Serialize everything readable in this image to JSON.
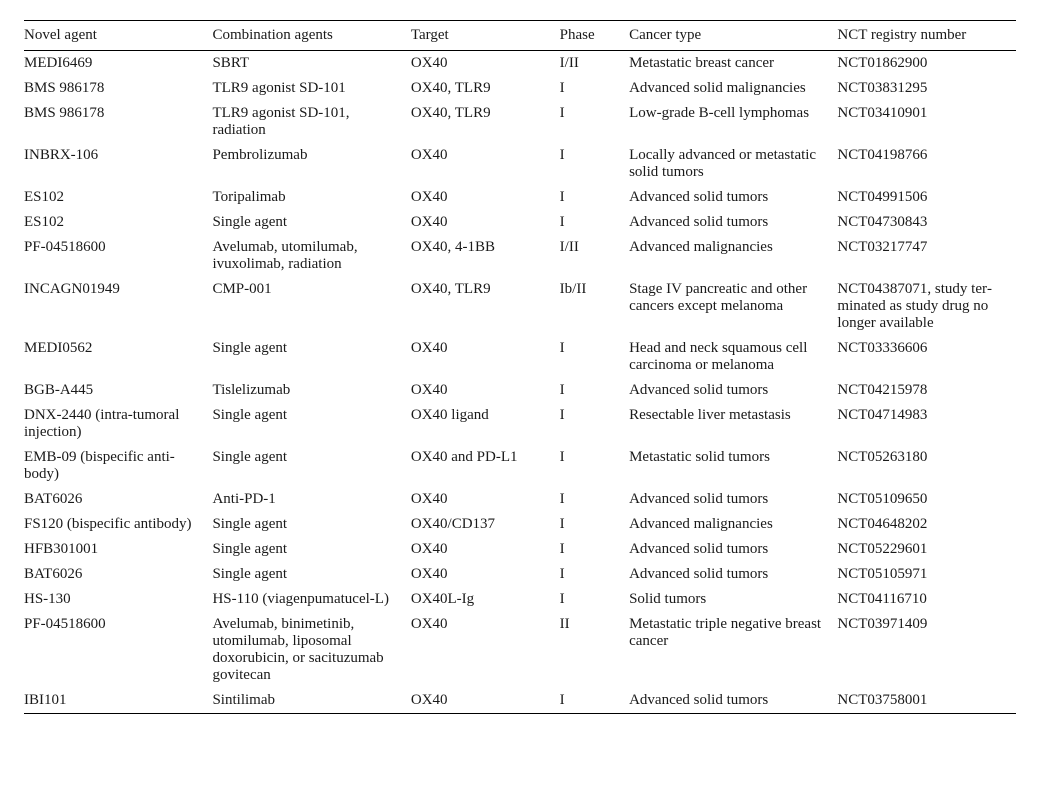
{
  "columns": [
    "Novel agent",
    "Combination agents",
    "Target",
    "Phase",
    "Cancer type",
    "NCT registry number"
  ],
  "rows": [
    {
      "agent": "MEDI6469",
      "combo": "SBRT",
      "target": "OX40",
      "phase": "I/II",
      "cancer": "Metastatic breast cancer",
      "nct": "NCT01862900"
    },
    {
      "agent": "BMS 986178",
      "combo": "TLR9 agonist SD-101",
      "target": "OX40, TLR9",
      "phase": "I",
      "cancer": "Advanced solid malignan­cies",
      "nct": "NCT03831295"
    },
    {
      "agent": "BMS 986178",
      "combo": "TLR9 agonist SD-101, radiation",
      "target": "OX40, TLR9",
      "phase": "I",
      "cancer": "Low-grade B-cell lympho­mas",
      "nct": "NCT03410901"
    },
    {
      "agent": "INBRX-106",
      "combo": "Pembrolizumab",
      "target": "OX40",
      "phase": "I",
      "cancer": "Locally advanced or meta­static solid tumors",
      "nct": "NCT04198766"
    },
    {
      "agent": "ES102",
      "combo": "Toripalimab",
      "target": "OX40",
      "phase": "I",
      "cancer": "Advanced solid tumors",
      "nct": "NCT04991506"
    },
    {
      "agent": "ES102",
      "combo": "Single agent",
      "target": "OX40",
      "phase": "I",
      "cancer": "Advanced solid tumors",
      "nct": "NCT04730843"
    },
    {
      "agent": "PF-04518600",
      "combo": "Avelumab, utomilumab, ivuxolimab, radiation",
      "target": "OX40, 4-1BB",
      "phase": "I/II",
      "cancer": "Advanced malignancies",
      "nct": "NCT03217747"
    },
    {
      "agent": "INCAGN01949",
      "combo": "CMP-001",
      "target": "OX40, TLR9",
      "phase": "Ib/II",
      "cancer": "Stage IV pancreatic and other cancers except melanoma",
      "nct": "NCT04387071, study ter­minated as study drug no longer available"
    },
    {
      "agent": "MEDI0562",
      "combo": "Single agent",
      "target": "OX40",
      "phase": "I",
      "cancer": "Head and neck squamous cell carcinoma or mela­noma",
      "nct": "NCT03336606"
    },
    {
      "agent": "BGB-A445",
      "combo": "Tislelizumab",
      "target": "OX40",
      "phase": "I",
      "cancer": "Advanced solid tumors",
      "nct": "NCT04215978"
    },
    {
      "agent": "DNX-2440 (intra-tumoral injection)",
      "combo": "Single agent",
      "target": "OX40 ligand",
      "phase": "I",
      "cancer": "Resectable liver metastasis",
      "nct": "NCT04714983"
    },
    {
      "agent": "EMB-09 (bispecific anti­body)",
      "combo": "Single agent",
      "target": "OX40 and PD-L1",
      "phase": "I",
      "cancer": "Metastatic solid tumors",
      "nct": "NCT05263180"
    },
    {
      "agent": "BAT6026",
      "combo": "Anti-PD-1",
      "target": "OX40",
      "phase": "I",
      "cancer": "Advanced solid tumors",
      "nct": "NCT05109650"
    },
    {
      "agent": "FS120 (bispecific antibody)",
      "combo": "Single agent",
      "target": "OX40/CD137",
      "phase": "I",
      "cancer": "Advanced malignancies",
      "nct": "NCT04648202"
    },
    {
      "agent": "HFB301001",
      "combo": "Single agent",
      "target": "OX40",
      "phase": "I",
      "cancer": "Advanced solid tumors",
      "nct": "NCT05229601"
    },
    {
      "agent": "BAT6026",
      "combo": "Single agent",
      "target": "OX40",
      "phase": "I",
      "cancer": "Advanced solid tumors",
      "nct": "NCT05105971"
    },
    {
      "agent": "HS-130",
      "combo": "HS-110 (viagenpumatucel-L)",
      "target": "OX40L-Ig",
      "phase": "I",
      "cancer": "Solid tumors",
      "nct": "NCT04116710"
    },
    {
      "agent": "PF-04518600",
      "combo": "Avelumab, binimetinib, utomilumab, liposomal doxorubicin, or sacitu­zumab govitecan",
      "target": "OX40",
      "phase": "II",
      "cancer": "Metastatic triple negative breast cancer",
      "nct": "NCT03971409"
    },
    {
      "agent": "IBI101",
      "combo": "Sintilimab",
      "target": "OX40",
      "phase": "I",
      "cancer": "Advanced solid tumors",
      "nct": "NCT03758001"
    }
  ]
}
